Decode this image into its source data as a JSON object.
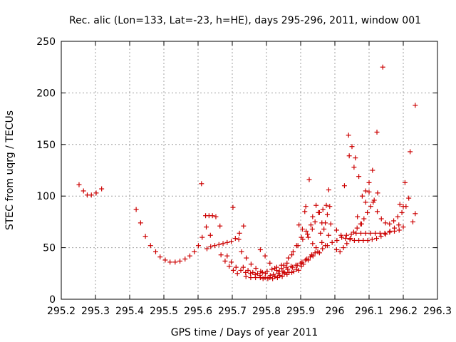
{
  "chart_data": {
    "type": "scatter",
    "title": "Rec. alic (Lon=133, Lat=-23, h=HE), days 295-296, 2011, window 001",
    "xlabel": "GPS time / Days of year 2011",
    "ylabel": "STEC from uqrg / TECUs",
    "xlim": [
      295.2,
      296.3
    ],
    "ylim": [
      0,
      250
    ],
    "xticks": [
      "295.2",
      "295.3",
      "295.4",
      "295.5",
      "295.6",
      "295.7",
      "295.8",
      "295.9",
      "296",
      "296.1",
      "296.2",
      "296.3"
    ],
    "yticks": [
      "0",
      "50",
      "100",
      "150",
      "200",
      "250"
    ],
    "grid": true,
    "marker": "+",
    "marker_color": "#cc0000",
    "series": [
      {
        "points": [
          [
            295.252,
            111
          ],
          [
            295.265,
            105
          ],
          [
            295.276,
            101
          ],
          [
            295.288,
            101
          ],
          [
            295.302,
            103
          ],
          [
            295.318,
            107
          ],
          [
            295.419,
            87
          ],
          [
            295.432,
            74
          ],
          [
            295.446,
            61
          ],
          [
            295.461,
            52
          ],
          [
            295.476,
            46
          ],
          [
            295.489,
            41
          ],
          [
            295.504,
            38
          ],
          [
            295.518,
            36
          ],
          [
            295.533,
            36
          ],
          [
            295.547,
            37
          ],
          [
            295.562,
            39
          ],
          [
            295.576,
            42
          ],
          [
            295.589,
            46
          ],
          [
            295.601,
            52
          ],
          [
            295.61,
            112
          ],
          [
            295.622,
            81
          ],
          [
            295.632,
            81
          ],
          [
            295.642,
            81
          ],
          [
            295.652,
            80
          ],
          [
            295.664,
            71
          ],
          [
            295.612,
            60
          ],
          [
            295.624,
            70
          ],
          [
            295.636,
            62
          ],
          [
            295.626,
            49
          ],
          [
            295.637,
            51
          ],
          [
            295.649,
            52
          ],
          [
            295.661,
            53
          ],
          [
            295.673,
            54
          ],
          [
            295.685,
            55
          ],
          [
            295.697,
            56
          ],
          [
            295.709,
            59
          ],
          [
            295.721,
            64
          ],
          [
            295.733,
            71
          ],
          [
            295.702,
            89
          ],
          [
            295.667,
            43
          ],
          [
            295.679,
            37
          ],
          [
            295.691,
            32
          ],
          [
            295.703,
            28
          ],
          [
            295.715,
            25
          ],
          [
            295.685,
            42
          ],
          [
            295.697,
            36
          ],
          [
            295.711,
            31
          ],
          [
            295.725,
            28
          ],
          [
            295.739,
            26
          ],
          [
            295.753,
            25
          ],
          [
            295.767,
            24
          ],
          [
            295.781,
            23
          ],
          [
            295.719,
            58
          ],
          [
            295.727,
            46
          ],
          [
            295.741,
            40
          ],
          [
            295.755,
            34
          ],
          [
            295.769,
            30
          ],
          [
            295.783,
            27
          ],
          [
            295.797,
            25
          ],
          [
            295.811,
            23
          ],
          [
            295.825,
            22
          ],
          [
            295.839,
            23
          ],
          [
            295.732,
            31
          ],
          [
            295.746,
            28
          ],
          [
            295.76,
            26
          ],
          [
            295.774,
            25
          ],
          [
            295.788,
            26
          ],
          [
            295.802,
            27
          ],
          [
            295.816,
            29
          ],
          [
            295.83,
            31
          ],
          [
            295.844,
            33
          ],
          [
            295.782,
            48
          ],
          [
            295.796,
            42
          ],
          [
            295.81,
            35
          ],
          [
            295.824,
            30
          ],
          [
            295.838,
            27
          ],
          [
            295.852,
            26
          ],
          [
            295.866,
            26
          ],
          [
            295.88,
            27
          ],
          [
            295.894,
            28
          ],
          [
            295.74,
            22
          ],
          [
            295.754,
            21
          ],
          [
            295.768,
            21
          ],
          [
            295.782,
            21
          ],
          [
            295.796,
            21
          ],
          [
            295.81,
            21
          ],
          [
            295.824,
            22
          ],
          [
            295.838,
            23
          ],
          [
            295.852,
            25
          ],
          [
            295.79,
            20
          ],
          [
            295.804,
            20
          ],
          [
            295.818,
            20
          ],
          [
            295.832,
            21
          ],
          [
            295.846,
            22
          ],
          [
            295.86,
            24
          ],
          [
            295.874,
            26
          ],
          [
            295.888,
            29
          ],
          [
            295.902,
            32
          ],
          [
            295.82,
            24
          ],
          [
            295.834,
            25
          ],
          [
            295.848,
            27
          ],
          [
            295.862,
            29
          ],
          [
            295.876,
            31
          ],
          [
            295.89,
            33
          ],
          [
            295.904,
            36
          ],
          [
            295.918,
            39
          ],
          [
            295.932,
            43
          ],
          [
            295.83,
            28
          ],
          [
            295.844,
            30
          ],
          [
            295.858,
            31
          ],
          [
            295.872,
            32
          ],
          [
            295.886,
            33
          ],
          [
            295.9,
            35
          ],
          [
            295.914,
            38
          ],
          [
            295.928,
            41
          ],
          [
            295.942,
            45
          ],
          [
            295.85,
            33
          ],
          [
            295.864,
            40
          ],
          [
            295.878,
            46
          ],
          [
            295.892,
            52
          ],
          [
            295.906,
            58
          ],
          [
            295.92,
            63
          ],
          [
            295.934,
            68
          ],
          [
            295.86,
            35
          ],
          [
            295.874,
            43
          ],
          [
            295.888,
            52
          ],
          [
            295.902,
            60
          ],
          [
            295.916,
            66
          ],
          [
            295.93,
            72
          ],
          [
            295.895,
            72
          ],
          [
            295.905,
            68
          ],
          [
            295.912,
            85
          ],
          [
            295.922,
            60
          ],
          [
            295.935,
            80
          ],
          [
            295.945,
            91
          ],
          [
            295.955,
            84
          ],
          [
            295.965,
            87
          ],
          [
            295.975,
            91
          ],
          [
            295.935,
            54
          ],
          [
            295.945,
            50
          ],
          [
            295.955,
            45
          ],
          [
            295.915,
            90
          ],
          [
            295.925,
            116
          ],
          [
            295.942,
            75
          ],
          [
            295.952,
            84
          ],
          [
            295.962,
            74
          ],
          [
            295.972,
            74
          ],
          [
            295.982,
            106
          ],
          [
            295.985,
            90
          ],
          [
            295.958,
            64
          ],
          [
            295.968,
            68
          ],
          [
            295.978,
            82
          ],
          [
            295.988,
            73
          ],
          [
            295.962,
            55
          ],
          [
            295.972,
            52
          ],
          [
            295.982,
            62
          ],
          [
            295.908,
            34
          ],
          [
            295.922,
            38
          ],
          [
            295.936,
            42
          ],
          [
            295.95,
            46
          ],
          [
            295.964,
            49
          ],
          [
            295.978,
            52
          ],
          [
            295.992,
            55
          ],
          [
            296.006,
            57
          ],
          [
            296.02,
            60
          ],
          [
            296.034,
            62
          ],
          [
            296.048,
            63
          ],
          [
            296.062,
            64
          ],
          [
            296.076,
            64
          ],
          [
            296.09,
            64
          ],
          [
            296.104,
            64
          ],
          [
            296.118,
            64
          ],
          [
            296.132,
            64
          ],
          [
            296.146,
            64
          ],
          [
            296.16,
            65
          ],
          [
            296.174,
            66
          ],
          [
            296.188,
            67
          ],
          [
            296.005,
            67
          ],
          [
            296.018,
            62
          ],
          [
            296.031,
            59
          ],
          [
            296.044,
            58
          ],
          [
            296.057,
            57
          ],
          [
            296.07,
            57
          ],
          [
            296.083,
            57
          ],
          [
            296.096,
            57
          ],
          [
            296.109,
            58
          ],
          [
            296.122,
            59
          ],
          [
            296.135,
            61
          ],
          [
            296.148,
            63
          ],
          [
            296.161,
            66
          ],
          [
            296.174,
            69
          ],
          [
            296.187,
            72
          ],
          [
            296.2,
            70
          ],
          [
            296.005,
            48
          ],
          [
            296.015,
            46
          ],
          [
            296.025,
            50
          ],
          [
            296.035,
            54
          ],
          [
            296.045,
            59
          ],
          [
            296.055,
            65
          ],
          [
            296.065,
            69
          ],
          [
            296.075,
            73
          ],
          [
            296.085,
            78
          ],
          [
            296.095,
            84
          ],
          [
            296.105,
            90
          ],
          [
            296.115,
            96
          ],
          [
            296.125,
            103
          ],
          [
            296.028,
            110
          ],
          [
            296.04,
            159
          ],
          [
            296.05,
            148
          ],
          [
            296.06,
            137
          ],
          [
            296.07,
            119
          ],
          [
            296.08,
            100
          ],
          [
            296.09,
            94
          ],
          [
            296.1,
            113
          ],
          [
            296.11,
            125
          ],
          [
            296.123,
            162
          ],
          [
            296.14,
            225
          ],
          [
            296.042,
            139
          ],
          [
            296.056,
            128
          ],
          [
            296.066,
            80
          ],
          [
            296.078,
            73
          ],
          [
            296.09,
            105
          ],
          [
            296.1,
            104
          ],
          [
            296.112,
            94
          ],
          [
            296.124,
            85
          ],
          [
            296.136,
            78
          ],
          [
            296.148,
            74
          ],
          [
            296.16,
            73
          ],
          [
            296.172,
            76
          ],
          [
            296.184,
            80
          ],
          [
            296.196,
            84
          ],
          [
            296.208,
            90
          ],
          [
            296.216,
            98
          ],
          [
            296.228,
            75
          ],
          [
            296.235,
            83
          ],
          [
            296.205,
            113
          ],
          [
            296.22,
            143
          ],
          [
            296.235,
            188
          ],
          [
            296.19,
            92
          ],
          [
            296.2,
            90
          ]
        ]
      }
    ]
  }
}
